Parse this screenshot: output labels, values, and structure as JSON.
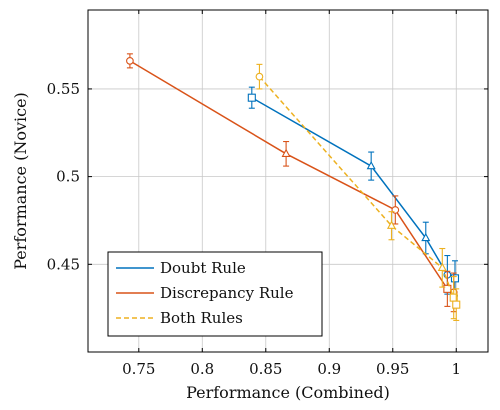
{
  "chart_data": {
    "type": "line",
    "title": "",
    "xlabel": "Performance (Combined)",
    "ylabel": "Performance (Novice)",
    "xlim": [
      0.71,
      1.025
    ],
    "ylim": [
      0.4,
      0.595
    ],
    "grid": true,
    "legend_position": "bottom-left",
    "xticks": [
      {
        "value": 0.75,
        "label": "0.75"
      },
      {
        "value": 0.8,
        "label": "0.8"
      },
      {
        "value": 0.85,
        "label": "0.85"
      },
      {
        "value": 0.9,
        "label": "0.9"
      },
      {
        "value": 0.95,
        "label": "0.95"
      },
      {
        "value": 1.0,
        "label": "1"
      }
    ],
    "yticks": [
      {
        "value": 0.45,
        "label": "0.45"
      },
      {
        "value": 0.5,
        "label": "0.5"
      },
      {
        "value": 0.55,
        "label": "0.55"
      }
    ],
    "series": [
      {
        "name": "Doubt Rule",
        "color": "#0072bd",
        "line_style": "solid",
        "points": [
          {
            "x": 0.839,
            "y": 0.545,
            "err": 0.006,
            "marker": "square"
          },
          {
            "x": 0.933,
            "y": 0.506,
            "err": 0.008,
            "marker": "triangle"
          },
          {
            "x": 0.976,
            "y": 0.465,
            "err": 0.009,
            "marker": "triangle"
          },
          {
            "x": 0.993,
            "y": 0.444,
            "err": 0.011,
            "marker": "circle"
          },
          {
            "x": 0.999,
            "y": 0.442,
            "err": 0.01,
            "marker": "square"
          }
        ]
      },
      {
        "name": "Discrepancy Rule",
        "color": "#d95319",
        "line_style": "solid",
        "points": [
          {
            "x": 0.743,
            "y": 0.566,
            "err": 0.004,
            "marker": "circle"
          },
          {
            "x": 0.866,
            "y": 0.513,
            "err": 0.007,
            "marker": "triangle"
          },
          {
            "x": 0.952,
            "y": 0.481,
            "err": 0.008,
            "marker": "circle"
          },
          {
            "x": 0.993,
            "y": 0.436,
            "err": 0.01,
            "marker": "square"
          },
          {
            "x": 0.998,
            "y": 0.434,
            "err": 0.011,
            "marker": "circle"
          }
        ]
      },
      {
        "name": "Both Rules",
        "color": "#edb120",
        "line_style": "dashed",
        "points": [
          {
            "x": 0.845,
            "y": 0.557,
            "err": 0.007,
            "marker": "circle"
          },
          {
            "x": 0.949,
            "y": 0.472,
            "err": 0.008,
            "marker": "triangle"
          },
          {
            "x": 0.989,
            "y": 0.448,
            "err": 0.011,
            "marker": "triangle"
          },
          {
            "x": 0.998,
            "y": 0.431,
            "err": 0.012,
            "marker": "square"
          },
          {
            "x": 1.0,
            "y": 0.427,
            "err": 0.009,
            "marker": "square"
          }
        ]
      }
    ]
  }
}
